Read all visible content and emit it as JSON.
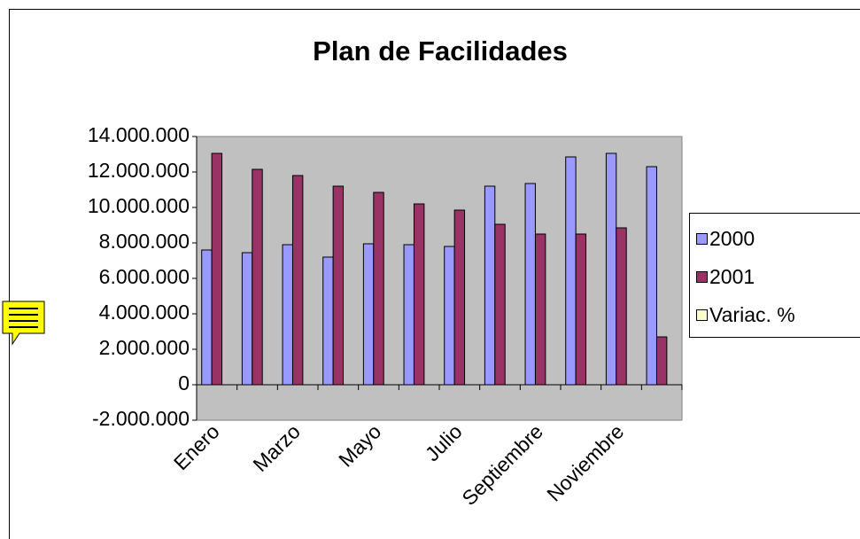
{
  "chart_data": {
    "type": "bar",
    "title": "Plan de Facilidades",
    "categories": [
      "Enero",
      null,
      "Marzo",
      null,
      "Mayo",
      null,
      "Julio",
      null,
      "Septiembre",
      null,
      "Noviembre",
      null
    ],
    "series": [
      {
        "name": "2000",
        "color": "#9999ff",
        "values": [
          7600000,
          7450000,
          7900000,
          7200000,
          7950000,
          7900000,
          7800000,
          11200000,
          11350000,
          12850000,
          13050000,
          12300000
        ]
      },
      {
        "name": "2001",
        "color": "#993366",
        "values": [
          13050000,
          12150000,
          11800000,
          11200000,
          10850000,
          10200000,
          9850000,
          9050000,
          8500000,
          8500000,
          8850000,
          2700000
        ]
      },
      {
        "name": "Variac. %",
        "color": "#ffffcc",
        "values": [
          null,
          null,
          null,
          null,
          null,
          null,
          null,
          null,
          null,
          null,
          null,
          null
        ]
      }
    ],
    "ylim": [
      -2000000,
      14000000
    ],
    "yticks": [
      {
        "value": -2000000,
        "label": "-2.000.000"
      },
      0,
      {
        "value": 2000000,
        "label": "2.000.000"
      },
      {
        "value": 4000000,
        "label": "4.000.000"
      },
      {
        "value": 6000000,
        "label": "6.000.000"
      },
      {
        "value": 8000000,
        "label": "8.000.000"
      },
      {
        "value": 10000000,
        "label": "10.000.000"
      },
      {
        "value": 12000000,
        "label": "12.000.000"
      },
      {
        "value": 14000000,
        "label": "14.000.000"
      }
    ],
    "grid": false,
    "legend": "right"
  }
}
